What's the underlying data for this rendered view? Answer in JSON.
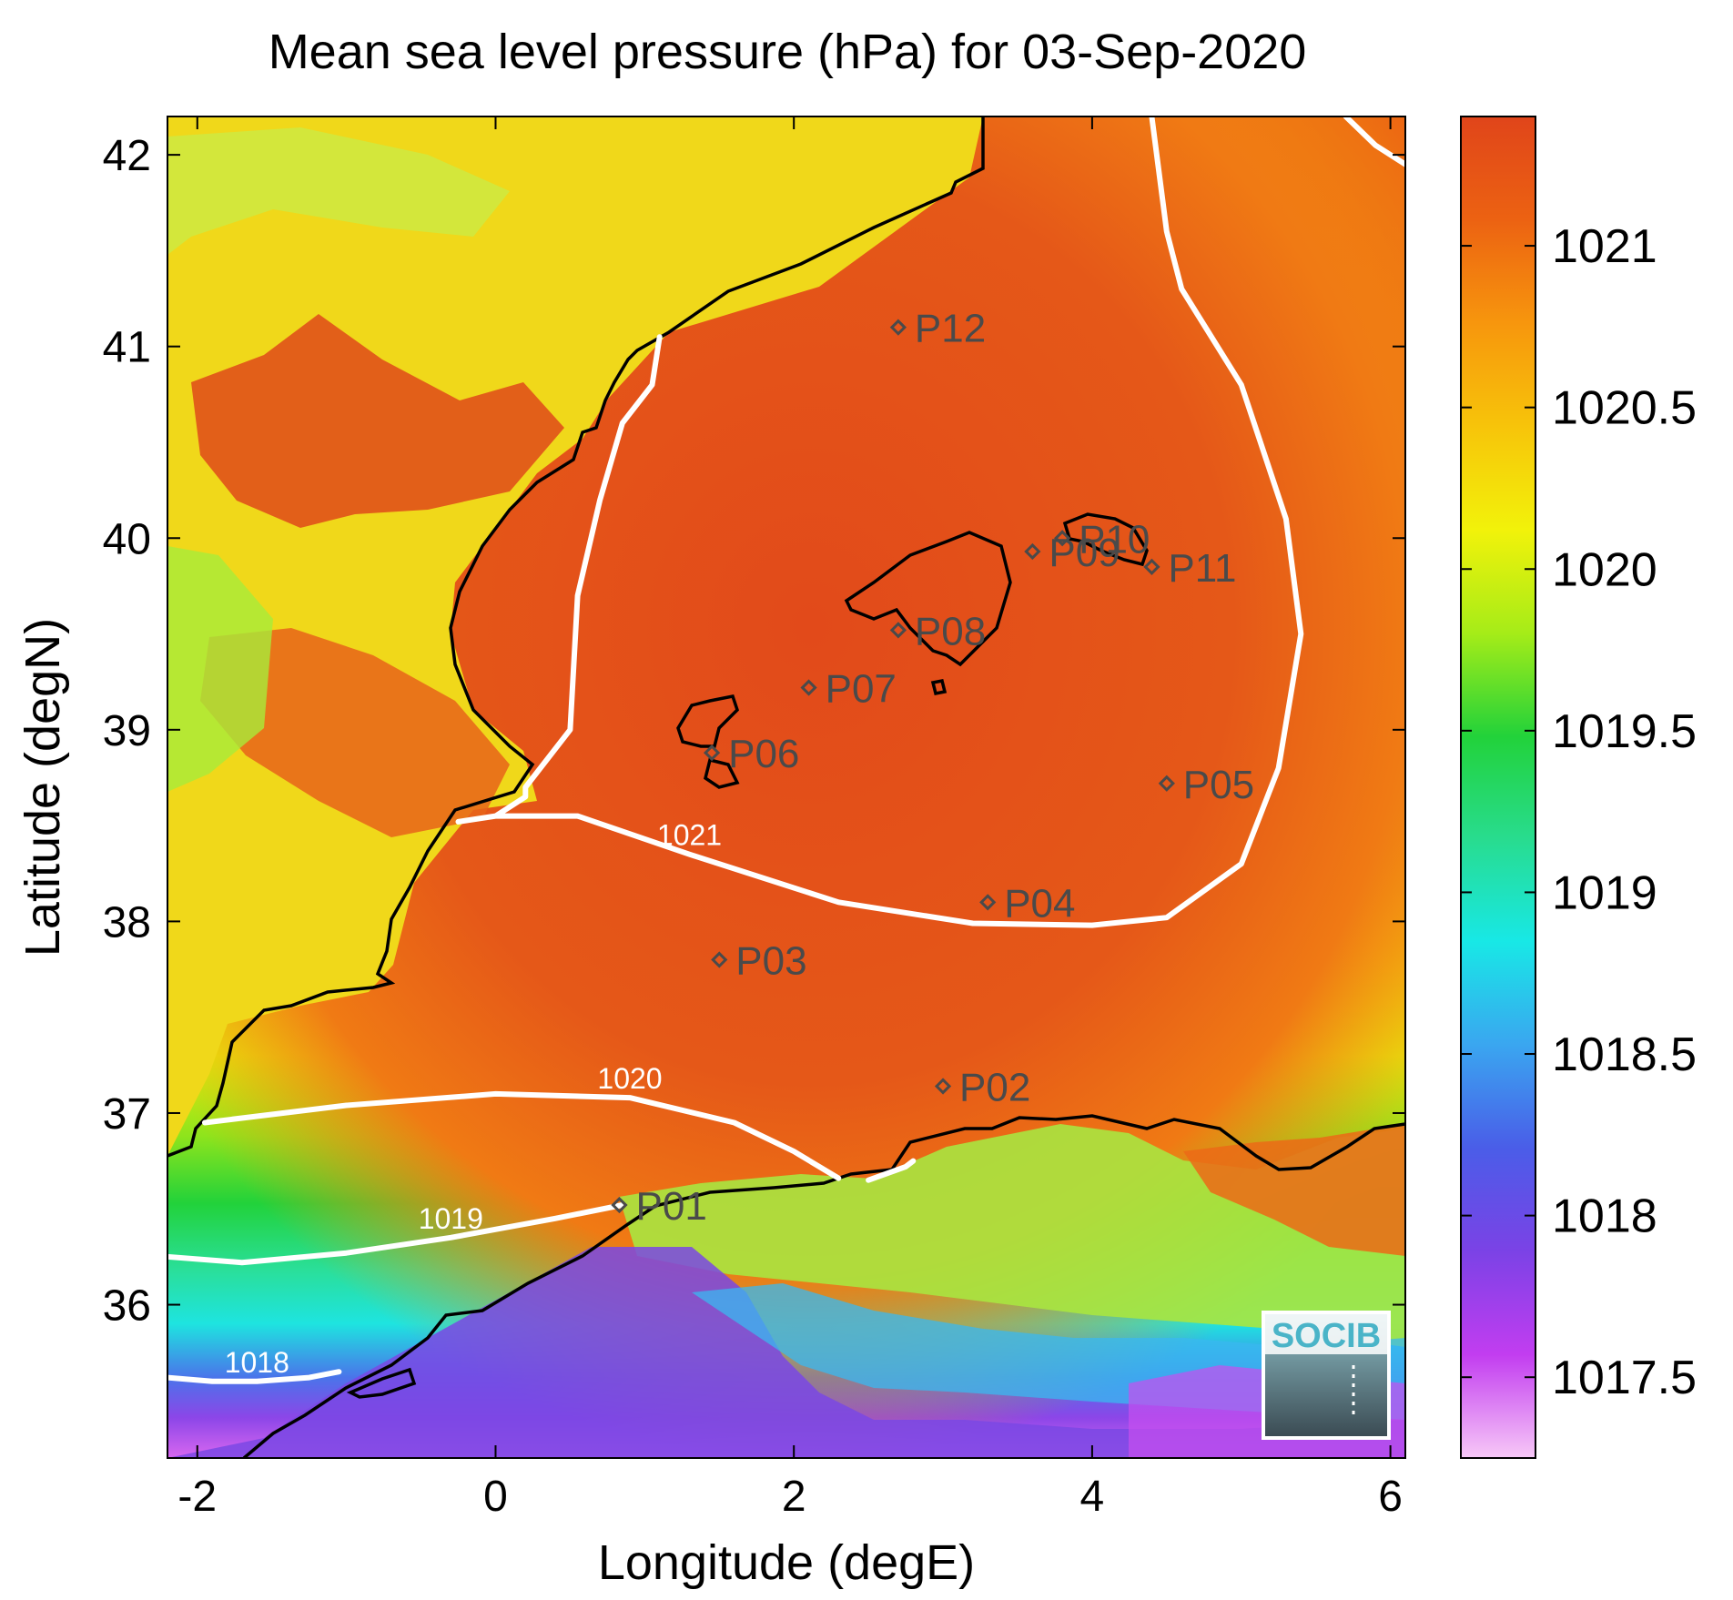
{
  "chart_data": {
    "type": "heatmap",
    "title": "Mean sea level pressure (hPa) for 03-Sep-2020",
    "xlabel": "Longitude (degE)",
    "ylabel": "Latitude (degN)",
    "xlim": [
      -2.2,
      6.1
    ],
    "ylim": [
      35.2,
      42.2
    ],
    "xticks": [
      -2,
      0,
      2,
      4,
      6
    ],
    "yticks": [
      36,
      37,
      38,
      39,
      40,
      41,
      42
    ],
    "colorbar": {
      "range": [
        1017.25,
        1021.4
      ],
      "ticks": [
        1017.5,
        1018,
        1018.5,
        1019,
        1019.5,
        1020,
        1020.5,
        1021
      ],
      "colormap": [
        "#f7c8f7",
        "#c23df0",
        "#7b42e6",
        "#4a5de8",
        "#3aa6f0",
        "#18e8e6",
        "#28dc8e",
        "#22d23a",
        "#a6ec18",
        "#f2f20a",
        "#f7c40a",
        "#f7960d",
        "#ec6212",
        "#e0451a"
      ]
    },
    "contours": [
      {
        "level": 1018,
        "label": "1018",
        "points": [
          [
            -2.2,
            35.62
          ],
          [
            -1.9,
            35.6
          ],
          [
            -1.6,
            35.6
          ],
          [
            -1.25,
            35.62
          ],
          [
            -1.05,
            35.65
          ]
        ]
      },
      {
        "level": 1019,
        "label": "1019",
        "points": [
          [
            -2.2,
            36.25
          ],
          [
            -1.7,
            36.22
          ],
          [
            -1.0,
            36.27
          ],
          [
            -0.3,
            36.35
          ],
          [
            0.4,
            36.45
          ],
          [
            0.85,
            36.52
          ]
        ]
      },
      {
        "level": 1020,
        "label": "1020",
        "points": [
          [
            -1.95,
            36.95
          ],
          [
            -1.0,
            37.04
          ],
          [
            0.0,
            37.1
          ],
          [
            0.9,
            37.08
          ],
          [
            1.6,
            36.95
          ],
          [
            2.0,
            36.8
          ],
          [
            2.3,
            36.66
          ]
        ]
      },
      {
        "level": 1020,
        "label": "",
        "points": [
          [
            2.5,
            36.65
          ],
          [
            2.75,
            36.72
          ],
          [
            2.8,
            36.75
          ]
        ]
      },
      {
        "level": 1021,
        "label": "1021",
        "points": [
          [
            1.1,
            41.05
          ],
          [
            1.05,
            40.8
          ],
          [
            0.85,
            40.6
          ],
          [
            0.7,
            40.2
          ],
          [
            0.55,
            39.7
          ],
          [
            0.5,
            39.0
          ],
          [
            0.2,
            38.7
          ],
          [
            0.2,
            38.65
          ],
          [
            0.0,
            38.55
          ],
          [
            -0.25,
            38.52
          ],
          [
            0.0,
            38.55
          ],
          [
            0.55,
            38.55
          ],
          [
            1.3,
            38.35
          ],
          [
            2.3,
            38.1
          ],
          [
            3.2,
            37.99
          ],
          [
            4.0,
            37.98
          ],
          [
            4.5,
            38.02
          ],
          [
            5.0,
            38.3
          ],
          [
            5.25,
            38.8
          ],
          [
            5.4,
            39.5
          ],
          [
            5.3,
            40.1
          ],
          [
            5.0,
            40.8
          ],
          [
            4.6,
            41.3
          ],
          [
            4.5,
            41.6
          ],
          [
            4.4,
            42.2
          ]
        ]
      },
      {
        "level": 1021,
        "label": "",
        "points": [
          [
            5.7,
            42.2
          ],
          [
            5.9,
            42.05
          ],
          [
            6.1,
            41.95
          ]
        ]
      }
    ],
    "stations": [
      {
        "name": "P01",
        "lon": 0.83,
        "lat": 36.52
      },
      {
        "name": "P02",
        "lon": 3.0,
        "lat": 37.14
      },
      {
        "name": "P03",
        "lon": 1.5,
        "lat": 37.8
      },
      {
        "name": "P04",
        "lon": 3.3,
        "lat": 38.1
      },
      {
        "name": "P05",
        "lon": 4.5,
        "lat": 38.72
      },
      {
        "name": "P06",
        "lon": 1.45,
        "lat": 38.88
      },
      {
        "name": "P07",
        "lon": 2.1,
        "lat": 39.22
      },
      {
        "name": "P08",
        "lon": 2.7,
        "lat": 39.52
      },
      {
        "name": "P09",
        "lon": 3.6,
        "lat": 39.93
      },
      {
        "name": "P10",
        "lon": 3.8,
        "lat": 40.0
      },
      {
        "name": "P11",
        "lon": 4.4,
        "lat": 39.85
      },
      {
        "name": "P12",
        "lon": 2.7,
        "lat": 41.1
      }
    ],
    "grid": false
  },
  "logo": {
    "text": "SOCIB"
  }
}
